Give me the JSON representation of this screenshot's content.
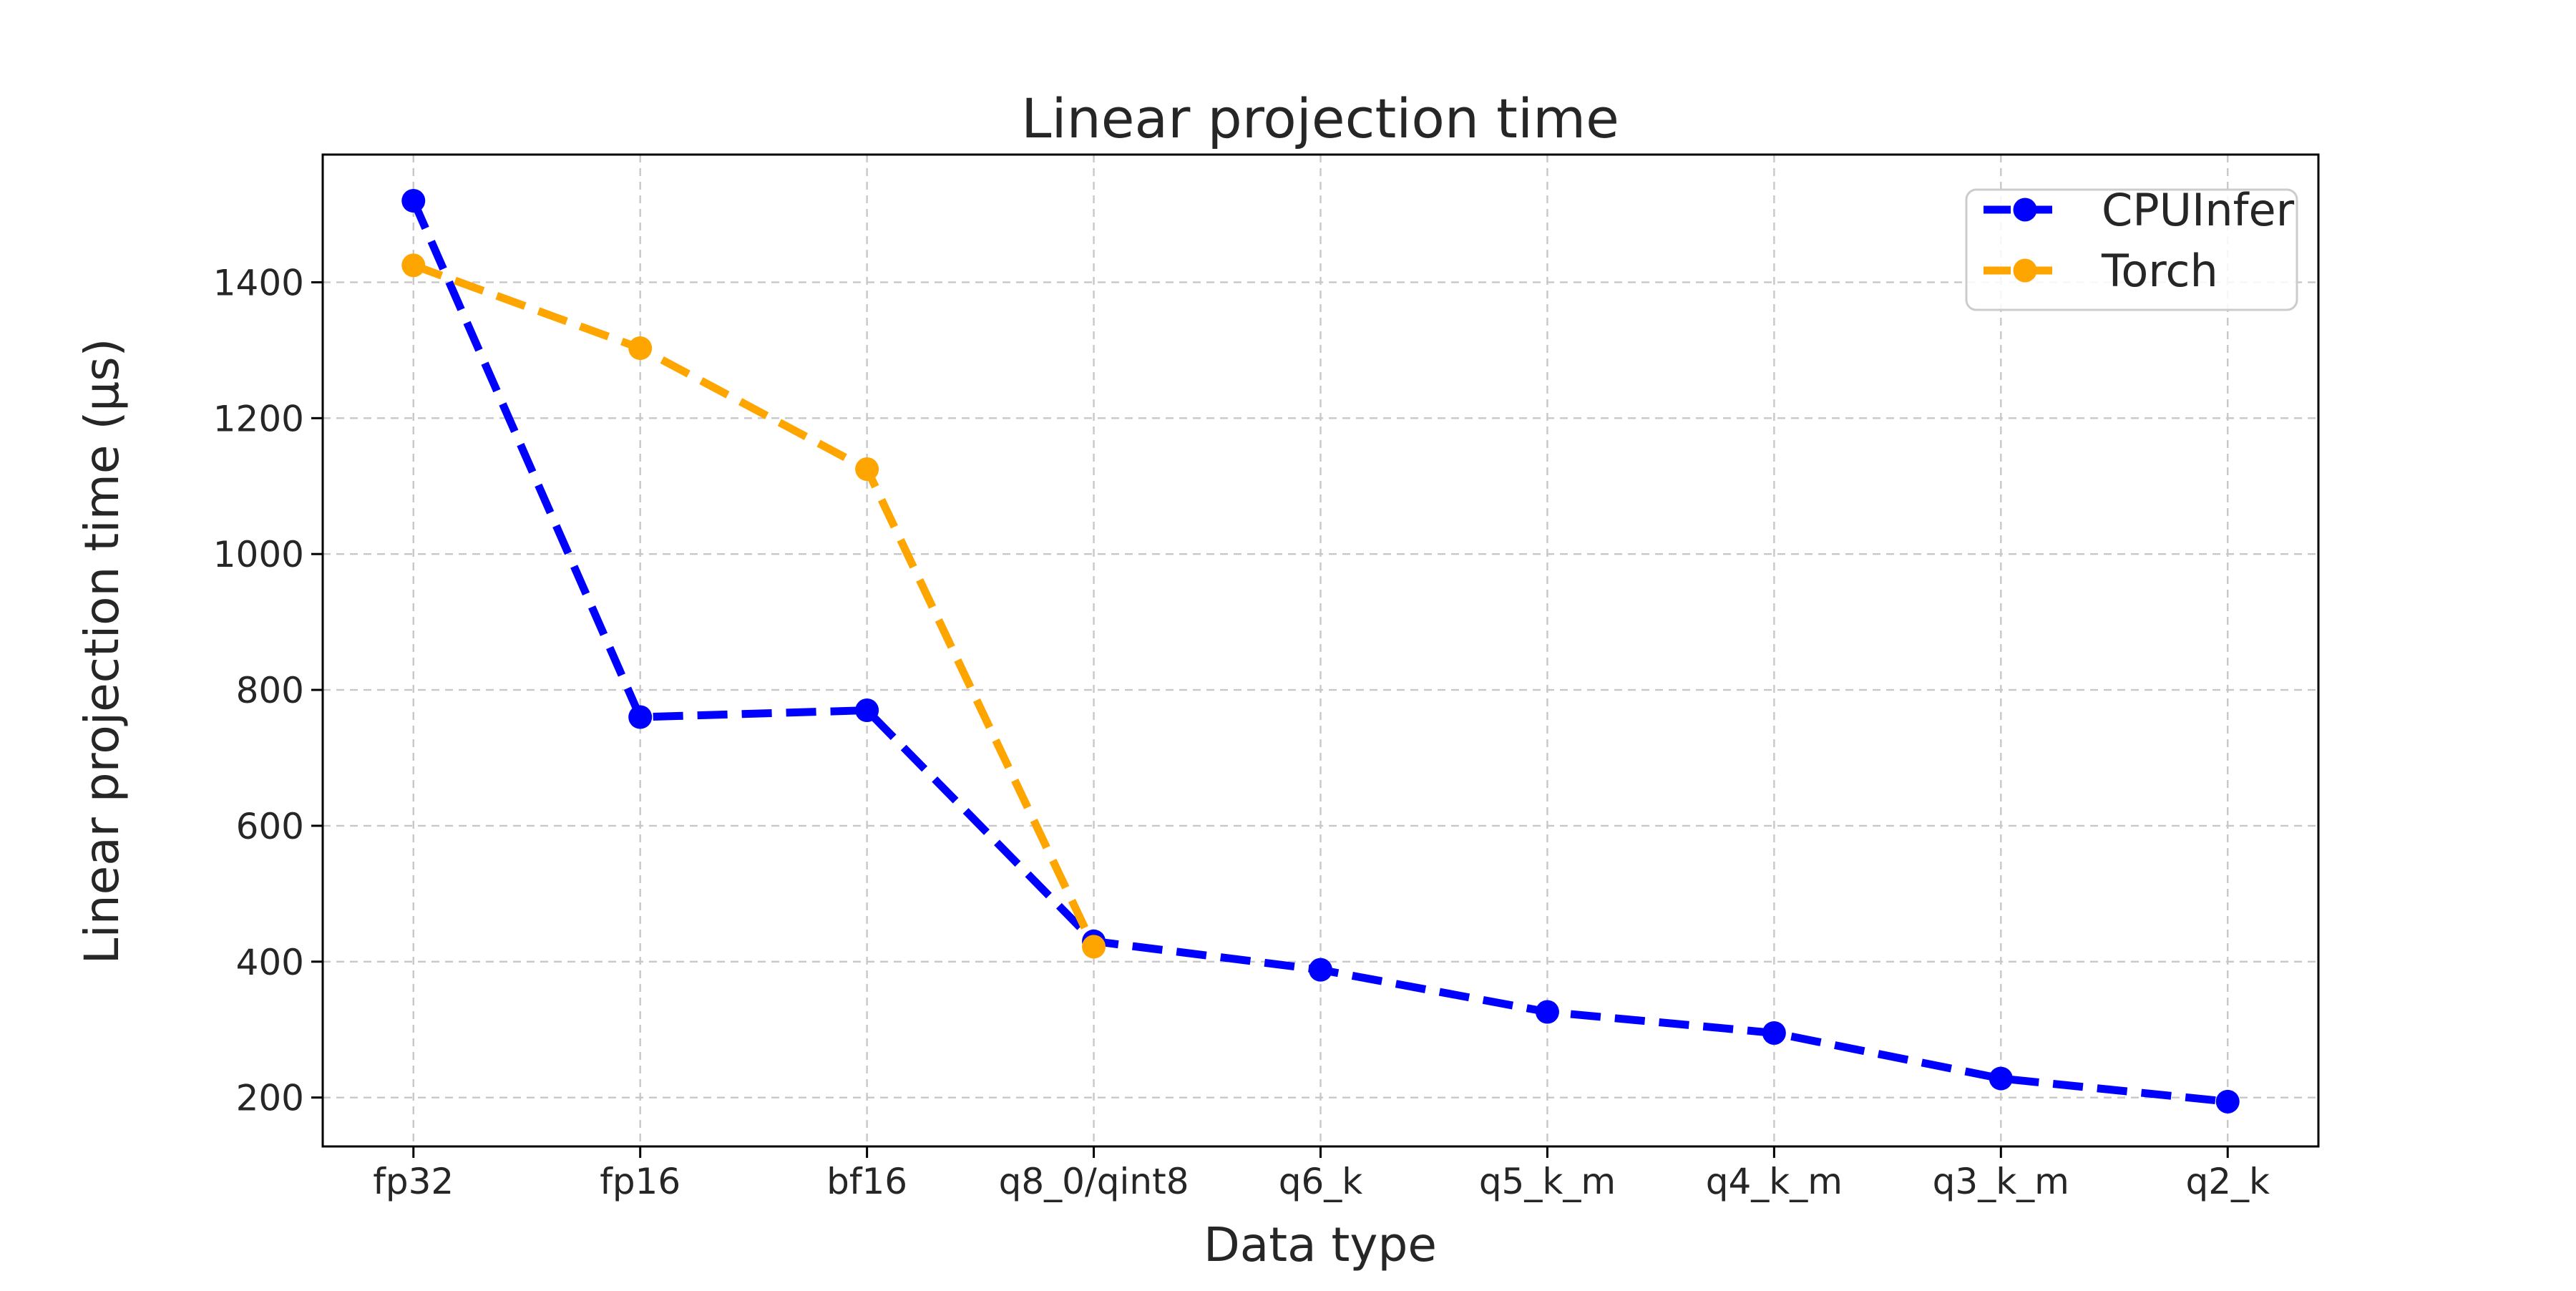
{
  "chart_data": {
    "type": "line",
    "title": "Linear projection time",
    "xlabel": "Data type",
    "ylabel": "Linear projection time (μs)",
    "categories": [
      "fp32",
      "fp16",
      "bf16",
      "q8_0/qint8",
      "q6_k",
      "q5_k_m",
      "q4_k_m",
      "q3_k_m",
      "q2_k"
    ],
    "series": [
      {
        "name": "CPUInfer",
        "color": "#0000ff",
        "values": [
          1520,
          760,
          770,
          430,
          388,
          326,
          295,
          228,
          194
        ]
      },
      {
        "name": "Torch",
        "color": "#ffa500",
        "values": [
          1425,
          1303,
          1125,
          422,
          null,
          null,
          null,
          null,
          null
        ]
      }
    ],
    "yticks": [
      200,
      400,
      600,
      800,
      1000,
      1200,
      1400
    ],
    "ylim": [
      128,
      1588
    ],
    "grid": true,
    "grid_color": "#c8c8c8",
    "line_style": "dashed",
    "marker": "circle",
    "legend_position": "upper right",
    "text_color": "#262626",
    "spine_color": "#000000",
    "background_color": "#ffffff"
  }
}
